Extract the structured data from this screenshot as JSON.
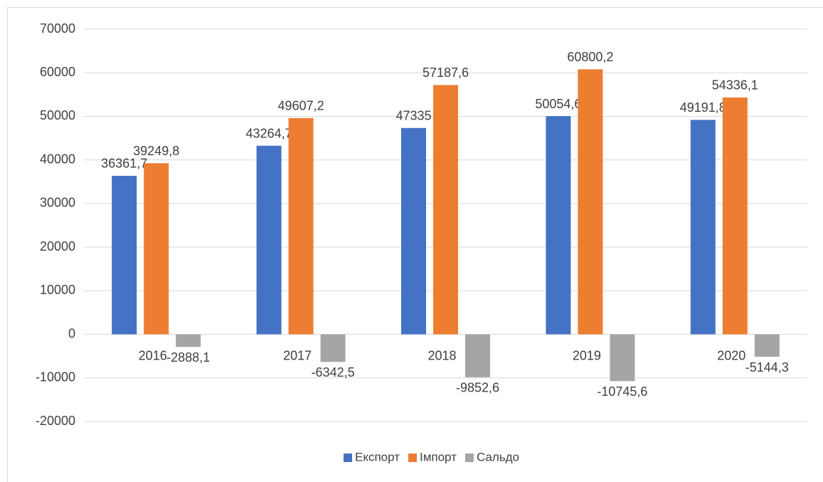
{
  "chart_data": {
    "type": "bar",
    "categories": [
      "2016",
      "2017",
      "2018",
      "2019",
      "2020"
    ],
    "series": [
      {
        "name": "Експорт",
        "color": "#4472c4",
        "values": [
          36361.7,
          43264.7,
          47335,
          50054.6,
          49191.8
        ],
        "value_labels": [
          "36361,7",
          "43264,7",
          "47335",
          "50054,6",
          "49191,8"
        ]
      },
      {
        "name": "Імпорт",
        "color": "#ed7d31",
        "values": [
          39249.8,
          49607.2,
          57187.6,
          60800.2,
          54336.1
        ],
        "value_labels": [
          "39249,8",
          "49607,2",
          "57187,6",
          "60800,2",
          "54336,1"
        ]
      },
      {
        "name": "Сальдо",
        "color": "#a5a5a5",
        "values": [
          -2888.1,
          -6342.5,
          -9852.6,
          -10745.6,
          -5144.3
        ],
        "value_labels": [
          "-2888,1",
          "-6342,5",
          "-9852,6",
          "-10745,6",
          "-5144,3"
        ]
      }
    ],
    "ylim": [
      -20000,
      70000
    ],
    "yticks": [
      -20000,
      -10000,
      0,
      10000,
      20000,
      30000,
      40000,
      50000,
      60000,
      70000
    ],
    "grid": true,
    "legend": "bottom"
  }
}
